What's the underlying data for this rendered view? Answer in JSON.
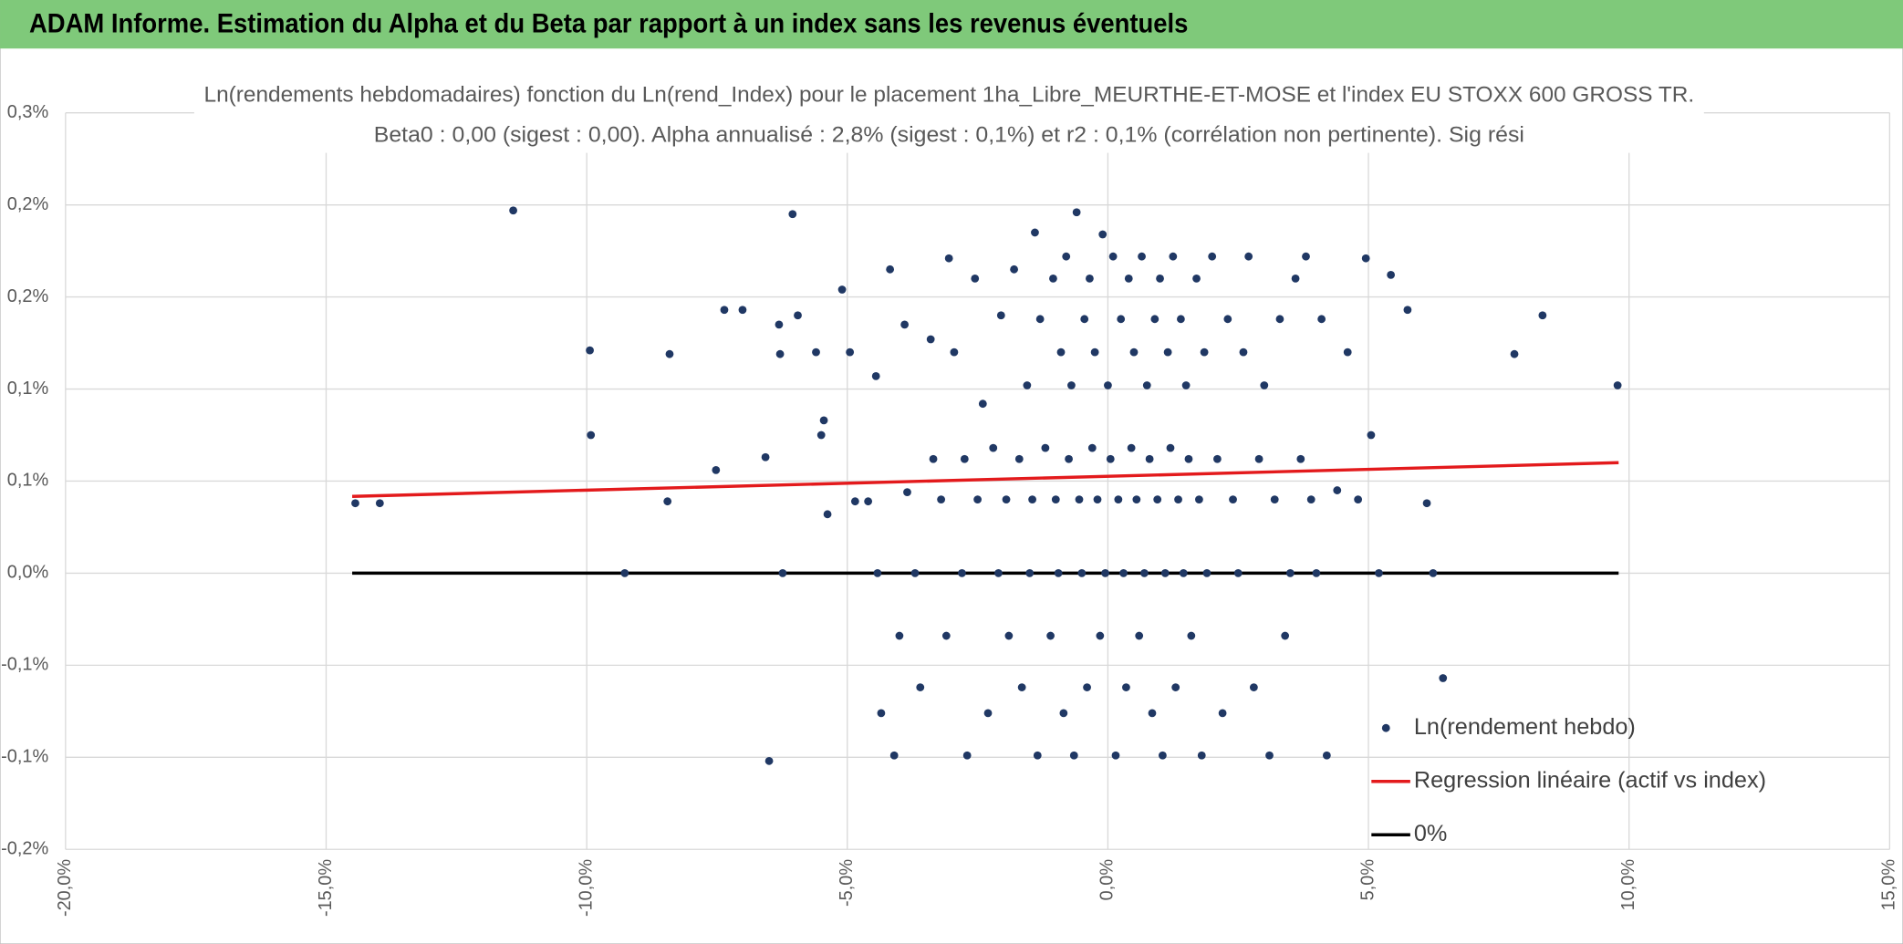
{
  "header": {
    "title": "ADAM Informe. Estimation du Alpha et du Beta par rapport à un index sans les revenus éventuels"
  },
  "chart_data": {
    "type": "scatter",
    "title": "Ln(rendements hebdomadaires) fonction du Ln(rend_Index) pour le placement 1ha_Libre_MEURTHE-ET-MOSE et l'index EU STOXX 600 GROSS TR.",
    "subtitle": "Beta0 : 0,00 (sigest : 0,00). Alpha annualisé : 2,8% (sigest : 0,1%) et r2 : 0,1% (corrélation non pertinente). Sig rési",
    "xlim": [
      -20,
      15
    ],
    "xticks": [
      {
        "value": -20,
        "label": "-20,0%"
      },
      {
        "value": -15,
        "label": "-15,0%"
      },
      {
        "value": -10,
        "label": "-10,0%"
      },
      {
        "value": -5,
        "label": "-5,0%"
      },
      {
        "value": 0,
        "label": "0,0%"
      },
      {
        "value": 5,
        "label": "5,0%"
      },
      {
        "value": 10,
        "label": "10,0%"
      },
      {
        "value": 15,
        "label": "15,0%"
      }
    ],
    "ylim": [
      -0.15,
      0.25
    ],
    "yticks": [
      {
        "value": 0.25,
        "label": "0,3%"
      },
      {
        "value": 0.2,
        "label": "0,2%"
      },
      {
        "value": 0.15,
        "label": "0,2%"
      },
      {
        "value": 0.1,
        "label": "0,1%"
      },
      {
        "value": 0.05,
        "label": "0,1%"
      },
      {
        "value": 0,
        "label": "0,0%"
      },
      {
        "value": -0.05,
        "label": "-0,1%"
      },
      {
        "value": -0.1,
        "label": "-0,1%"
      },
      {
        "value": -0.15,
        "label": "-0,2%"
      }
    ],
    "grid": true,
    "legend": "lower right",
    "series": [
      {
        "name": "Ln(rendement hebdo)",
        "color": "#203864",
        "style": "markers",
        "x": [
          -14.44,
          -13.97,
          -11.41,
          -9.94,
          -9.92,
          -9.27,
          -8.45,
          -8.41,
          -7.52,
          -7.36,
          -7.01,
          -6.57,
          -6.5,
          -6.31,
          -6.29,
          -6.24,
          -6.05,
          -5.95,
          -5.6,
          -5.5,
          -5.45,
          -5.38,
          -5.1,
          -4.95,
          -4.85,
          -4.6,
          -4.45,
          -4.42,
          -4.35,
          -4.18,
          -4.1,
          -4,
          -3.9,
          -3.85,
          -3.7,
          -3.6,
          -3.4,
          -3.35,
          -3.2,
          -3.1,
          -3.05,
          -2.95,
          -2.8,
          -2.75,
          -2.7,
          -2.55,
          -2.5,
          -2.4,
          -2.3,
          -2.2,
          -2.1,
          -2.05,
          -1.95,
          -1.9,
          -1.8,
          -1.7,
          -1.65,
          -1.55,
          -1.5,
          -1.45,
          -1.4,
          -1.35,
          -1.3,
          -1.2,
          -1.1,
          -1.05,
          -1,
          -0.95,
          -0.9,
          -0.85,
          -0.8,
          -0.75,
          -0.7,
          -0.65,
          -0.6,
          -0.55,
          -0.5,
          -0.45,
          -0.4,
          -0.35,
          -0.3,
          -0.25,
          -0.2,
          -0.15,
          -0.1,
          -0.05,
          0,
          0.05,
          0.1,
          0.15,
          0.2,
          0.25,
          0.3,
          0.35,
          0.4,
          0.45,
          0.5,
          0.55,
          0.6,
          0.65,
          0.7,
          0.75,
          0.8,
          0.85,
          0.9,
          0.95,
          1,
          1.05,
          1.1,
          1.15,
          1.2,
          1.25,
          1.3,
          1.35,
          1.4,
          1.45,
          1.5,
          1.55,
          1.6,
          1.7,
          1.75,
          1.8,
          1.85,
          1.9,
          2,
          2.1,
          2.2,
          2.3,
          2.4,
          2.5,
          2.6,
          2.7,
          2.8,
          2.9,
          3,
          3.1,
          3.2,
          3.3,
          3.4,
          3.5,
          3.6,
          3.7,
          3.8,
          3.9,
          4,
          4.1,
          4.2,
          4.4,
          4.6,
          4.8,
          4.95,
          5.05,
          5.2,
          5.43,
          5.75,
          6.12,
          6.24,
          6.43,
          7.8,
          8.34,
          9.78
        ],
        "values": [
          0.038,
          0.038,
          0.197,
          0.121,
          0.075,
          0,
          0.039,
          0.119,
          0.056,
          0.143,
          0.143,
          0.063,
          -0.102,
          0.135,
          0.119,
          0,
          0.195,
          0.14,
          0.12,
          0.075,
          0.083,
          0.032,
          0.154,
          0.12,
          0.039,
          0.039,
          0.107,
          0,
          -0.076,
          0.165,
          -0.099,
          -0.034,
          0.135,
          0.044,
          0,
          -0.062,
          0.127,
          0.062,
          0.04,
          -0.034,
          0.171,
          0.12,
          0,
          0.062,
          -0.099,
          0.16,
          0.04,
          0.092,
          -0.076,
          0.068,
          0,
          0.14,
          0.04,
          -0.034,
          0.165,
          0.062,
          -0.062,
          0.102,
          0,
          0.04,
          0.185,
          -0.099,
          0.138,
          0.068,
          -0.034,
          0.16,
          0.04,
          0,
          0.12,
          -0.076,
          0.172,
          0.062,
          0.102,
          -0.099,
          0.196,
          0.04,
          0,
          0.138,
          -0.062,
          0.16,
          0.068,
          0.12,
          0.04,
          -0.034,
          0.184,
          0,
          0.102,
          0.062,
          0.172,
          -0.099,
          0.04,
          0.138,
          0,
          -0.062,
          0.16,
          0.068,
          0.12,
          0.04,
          -0.034,
          0.172,
          0,
          0.102,
          0.062,
          -0.076,
          0.138,
          0.04,
          0.16,
          -0.099,
          0,
          0.12,
          0.068,
          0.172,
          -0.062,
          0.04,
          0.138,
          0,
          0.102,
          0.062,
          -0.034,
          0.16,
          0.04,
          -0.099,
          0.12,
          0,
          0.172,
          0.062,
          -0.076,
          0.138,
          0.04,
          0,
          0.12,
          0.172,
          -0.062,
          0.062,
          0.102,
          -0.099,
          0.04,
          0.138,
          -0.034,
          0,
          0.16,
          0.062,
          0.172,
          0.04,
          0,
          0.138,
          -0.099,
          0.045,
          0.12,
          0.04,
          0.171,
          0.075,
          0,
          0.162,
          0.143,
          0.038,
          0,
          -0.057,
          0.119,
          0.14,
          0.102
        ]
      },
      {
        "name": "Regression linéaire (actif vs index)",
        "color": "#e31a1c",
        "style": "line",
        "x": [
          -14.5,
          9.8
        ],
        "values": [
          0.0417,
          0.06
        ]
      },
      {
        "name": "0%",
        "color": "#000000",
        "style": "line",
        "x": [
          -14.5,
          9.8
        ],
        "values": [
          0,
          0
        ]
      }
    ]
  }
}
